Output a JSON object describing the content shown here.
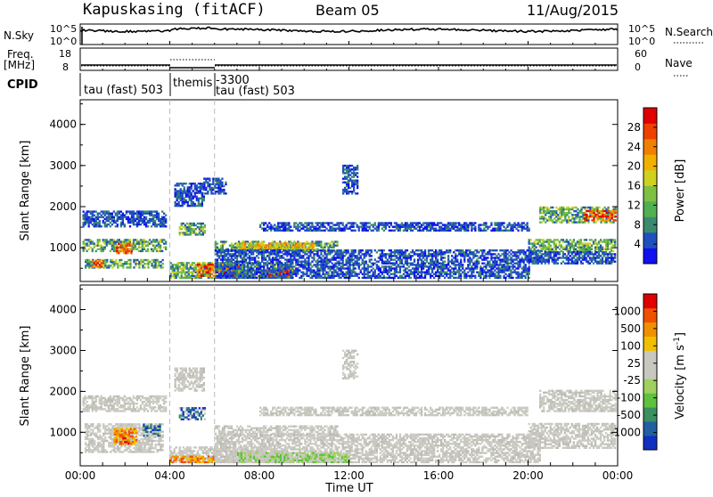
{
  "header": {
    "station": "Kapuskasing (fitACF)",
    "beam": "Beam 05",
    "date": "11/Aug/2015"
  },
  "side_labels": {
    "nsky": "N.Sky",
    "freq": "Freq.",
    "mhz": "[MHz]",
    "cpid": "CPID",
    "nsearch": "N.Search",
    "nave": "Nave"
  },
  "strip_ticks": {
    "noise_top": "10^5",
    "noise_bottom": "10^0",
    "freq_top": "18",
    "freq_bottom": "8",
    "nave_top": "60",
    "nave_bottom": "0"
  },
  "cpid": {
    "segment1": "tau (fast) 503",
    "segment2": "themis",
    "segment3_id": "-3300",
    "segment3": "tau (fast) 503"
  },
  "axes": {
    "ylabel": "Slant Range [km]",
    "xlabel": "Time UT",
    "yticks": [
      "4000",
      "3000",
      "2000",
      "1000"
    ],
    "xticks": [
      "00:00",
      "04:00",
      "08:00",
      "12:00",
      "16:00",
      "20:00",
      "00:00"
    ]
  },
  "colorbars": {
    "power": {
      "label": "Power [dB]",
      "ticks": [
        "28",
        "24",
        "20",
        "16",
        "12",
        "8",
        "4"
      ],
      "colors": [
        "#1010f0",
        "#2050c0",
        "#3a8a70",
        "#50b050",
        "#80c040",
        "#d0d020",
        "#f0b000",
        "#f08000",
        "#f04000",
        "#e00000"
      ]
    },
    "velocity": {
      "label": "Velocity [m s",
      "label_exp": "-1",
      "label_close": "]",
      "ticks": [
        "1000",
        "500",
        "100",
        "25",
        "-25",
        "-100",
        "-500",
        "-1000"
      ],
      "colors": [
        "#1030c0",
        "#2060a0",
        "#3a9060",
        "#60c040",
        "#a0d060",
        "#c8c8c0",
        "#c8c8c0",
        "#f0c000",
        "#f09000",
        "#f05000",
        "#e00000"
      ]
    }
  },
  "chart_data": {
    "type": "heatmap",
    "x_range": [
      "00:00",
      "00:00"
    ],
    "x_hours": [
      0,
      24
    ],
    "ylim_km": [
      180,
      4600
    ],
    "mode_change_hours": [
      4.0,
      6.0
    ],
    "power_regions": [
      {
        "t0": 0.1,
        "t1": 3.8,
        "r0": 1500,
        "r1": 1900,
        "level": "low"
      },
      {
        "t0": 0.1,
        "t1": 3.8,
        "r0": 900,
        "r1": 1200,
        "level": "mid"
      },
      {
        "t0": 1.6,
        "t1": 2.3,
        "r0": 850,
        "r1": 1100,
        "level": "high"
      },
      {
        "t0": 0.2,
        "t1": 3.7,
        "r0": 500,
        "r1": 700,
        "level": "mid"
      },
      {
        "t0": 0.5,
        "t1": 1.0,
        "r0": 520,
        "r1": 660,
        "level": "high"
      },
      {
        "t0": 4.2,
        "t1": 5.5,
        "r0": 2000,
        "r1": 2550,
        "level": "low"
      },
      {
        "t0": 4.4,
        "t1": 5.6,
        "r0": 1300,
        "r1": 1600,
        "level": "mid"
      },
      {
        "t0": 4.0,
        "t1": 9.5,
        "r0": 250,
        "r1": 650,
        "level": "mid"
      },
      {
        "t0": 5.2,
        "t1": 7.2,
        "r0": 300,
        "r1": 600,
        "level": "high"
      },
      {
        "t0": 8.0,
        "t1": 9.3,
        "r0": 280,
        "r1": 450,
        "level": "high"
      },
      {
        "t0": 6.0,
        "t1": 11.5,
        "r0": 900,
        "r1": 1150,
        "level": "mid"
      },
      {
        "t0": 7.0,
        "t1": 10.5,
        "r0": 950,
        "r1": 1100,
        "level": "mhigh"
      },
      {
        "t0": 6.0,
        "t1": 20.5,
        "r0": 600,
        "r1": 950,
        "level": "low"
      },
      {
        "t0": 6.0,
        "t1": 20.0,
        "r0": 250,
        "r1": 600,
        "level": "low"
      },
      {
        "t0": 8.0,
        "t1": 20.0,
        "r0": 1400,
        "r1": 1600,
        "level": "low"
      },
      {
        "t0": 20.5,
        "t1": 23.9,
        "r0": 1600,
        "r1": 2000,
        "level": "mid"
      },
      {
        "t0": 22.5,
        "t1": 23.9,
        "r0": 1650,
        "r1": 1900,
        "level": "high"
      },
      {
        "t0": 20.0,
        "t1": 23.9,
        "r0": 900,
        "r1": 1200,
        "level": "mid"
      },
      {
        "t0": 20.0,
        "t1": 23.9,
        "r0": 600,
        "r1": 900,
        "level": "low"
      },
      {
        "t0": 11.7,
        "t1": 12.4,
        "r0": 2300,
        "r1": 3000,
        "level": "low"
      },
      {
        "t0": 5.5,
        "t1": 6.5,
        "r0": 2300,
        "r1": 2700,
        "level": "low"
      }
    ],
    "velocity_regions": [
      {
        "t0": 0.1,
        "t1": 3.8,
        "r0": 1500,
        "r1": 1900,
        "level": "grey"
      },
      {
        "t0": 0.2,
        "t1": 3.7,
        "r0": 500,
        "r1": 1200,
        "level": "grey"
      },
      {
        "t0": 1.5,
        "t1": 2.5,
        "r0": 700,
        "r1": 1100,
        "level": "orange"
      },
      {
        "t0": 1.8,
        "t1": 2.2,
        "r0": 700,
        "r1": 850,
        "level": "red"
      },
      {
        "t0": 2.8,
        "t1": 3.6,
        "r0": 900,
        "r1": 1200,
        "level": "blue"
      },
      {
        "t0": 4.2,
        "t1": 5.5,
        "r0": 2000,
        "r1": 2550,
        "level": "grey"
      },
      {
        "t0": 4.4,
        "t1": 5.6,
        "r0": 1300,
        "r1": 1600,
        "level": "blue"
      },
      {
        "t0": 4.0,
        "t1": 9.5,
        "r0": 250,
        "r1": 650,
        "level": "grey"
      },
      {
        "t0": 6.0,
        "t1": 11.5,
        "r0": 900,
        "r1": 1150,
        "level": "grey"
      },
      {
        "t0": 6.0,
        "t1": 20.5,
        "r0": 250,
        "r1": 950,
        "level": "grey"
      },
      {
        "t0": 7.0,
        "t1": 12.0,
        "r0": 250,
        "r1": 500,
        "level": "green"
      },
      {
        "t0": 4.0,
        "t1": 6.0,
        "r0": 250,
        "r1": 400,
        "level": "orange"
      },
      {
        "t0": 8.0,
        "t1": 20.0,
        "r0": 1400,
        "r1": 1600,
        "level": "grey"
      },
      {
        "t0": 20.5,
        "t1": 23.9,
        "r0": 1500,
        "r1": 2000,
        "level": "grey"
      },
      {
        "t0": 20.0,
        "t1": 23.9,
        "r0": 600,
        "r1": 1200,
        "level": "grey"
      },
      {
        "t0": 11.7,
        "t1": 12.4,
        "r0": 2300,
        "r1": 3000,
        "level": "grey"
      }
    ]
  }
}
